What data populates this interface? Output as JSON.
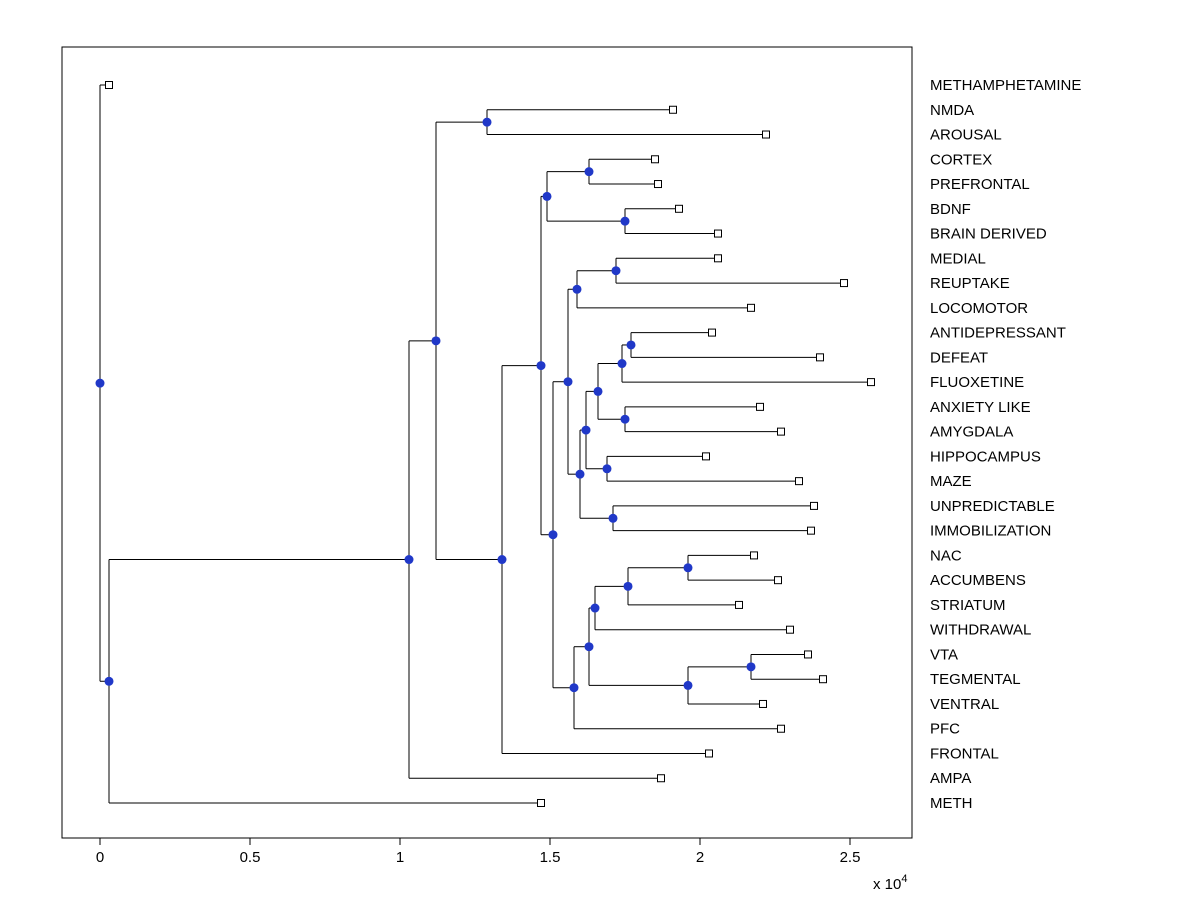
{
  "figure": {
    "background": "#ffffff"
  },
  "chart_data": {
    "type": "dendrogram",
    "orientation": "horizontal-root-left",
    "title": "",
    "xlabel": "",
    "ylabel": "",
    "grid": false,
    "legend": false,
    "xlim": [
      -0.127,
      2.707
    ],
    "x_ticks": [
      "0",
      "0.5",
      "1",
      "1.5",
      "2",
      "2.5"
    ],
    "x_tick_values": [
      0,
      0.5,
      1,
      1.5,
      2,
      2.5
    ],
    "x_axis_multiplier": {
      "base": "x 10",
      "exponent": "4"
    },
    "leaves": [
      {
        "label": "METHAMPHETAMINE",
        "x": 0.03
      },
      {
        "label": "NMDA",
        "x": 1.91
      },
      {
        "label": "AROUSAL",
        "x": 2.22
      },
      {
        "label": "CORTEX",
        "x": 1.85
      },
      {
        "label": "PREFRONTAL",
        "x": 1.86
      },
      {
        "label": "BDNF",
        "x": 1.93
      },
      {
        "label": "BRAIN DERIVED",
        "x": 2.06
      },
      {
        "label": "MEDIAL",
        "x": 2.06
      },
      {
        "label": "REUPTAKE",
        "x": 2.48
      },
      {
        "label": "LOCOMOTOR",
        "x": 2.17
      },
      {
        "label": "ANTIDEPRESSANT",
        "x": 2.04
      },
      {
        "label": "DEFEAT",
        "x": 2.4
      },
      {
        "label": "FLUOXETINE",
        "x": 2.57
      },
      {
        "label": "ANXIETY LIKE",
        "x": 2.2
      },
      {
        "label": "AMYGDALA",
        "x": 2.27
      },
      {
        "label": "HIPPOCAMPUS",
        "x": 2.02
      },
      {
        "label": "MAZE",
        "x": 2.33
      },
      {
        "label": "UNPREDICTABLE",
        "x": 2.38
      },
      {
        "label": "IMMOBILIZATION",
        "x": 2.37
      },
      {
        "label": "NAC",
        "x": 2.18
      },
      {
        "label": "ACCUMBENS",
        "x": 2.26
      },
      {
        "label": "STRIATUM",
        "x": 2.13
      },
      {
        "label": "WITHDRAWAL",
        "x": 2.3
      },
      {
        "label": "VTA",
        "x": 2.36
      },
      {
        "label": "TEGMENTAL",
        "x": 2.41
      },
      {
        "label": "VENTRAL",
        "x": 2.21
      },
      {
        "label": "PFC",
        "x": 2.27
      },
      {
        "label": "FRONTAL",
        "x": 2.03
      },
      {
        "label": "AMPA",
        "x": 1.87
      },
      {
        "label": "METH",
        "x": 1.47
      }
    ],
    "merges": [
      {
        "id": "n1",
        "children": [
          "NMDA",
          "AROUSAL"
        ],
        "x": 1.29
      },
      {
        "id": "n2",
        "children": [
          "CORTEX",
          "PREFRONTAL"
        ],
        "x": 1.63
      },
      {
        "id": "n3",
        "children": [
          "BDNF",
          "BRAIN DERIVED"
        ],
        "x": 1.75
      },
      {
        "id": "n4",
        "children": [
          "n2",
          "n3"
        ],
        "x": 1.49
      },
      {
        "id": "n5",
        "children": [
          "MEDIAL",
          "REUPTAKE"
        ],
        "x": 1.72
      },
      {
        "id": "n6",
        "children": [
          "n5",
          "LOCOMOTOR"
        ],
        "x": 1.59
      },
      {
        "id": "n7",
        "children": [
          "ANTIDEPRESSANT",
          "DEFEAT"
        ],
        "x": 1.77
      },
      {
        "id": "n8",
        "children": [
          "n7",
          "FLUOXETINE"
        ],
        "x": 1.74
      },
      {
        "id": "n9",
        "children": [
          "ANXIETY LIKE",
          "AMYGDALA"
        ],
        "x": 1.75
      },
      {
        "id": "n10",
        "children": [
          "n8",
          "n9"
        ],
        "x": 1.66
      },
      {
        "id": "n11",
        "children": [
          "HIPPOCAMPUS",
          "MAZE"
        ],
        "x": 1.69
      },
      {
        "id": "n12",
        "children": [
          "n10",
          "n11"
        ],
        "x": 1.62
      },
      {
        "id": "n13",
        "children": [
          "UNPREDICTABLE",
          "IMMOBILIZATION"
        ],
        "x": 1.71
      },
      {
        "id": "n14",
        "children": [
          "n12",
          "n13"
        ],
        "x": 1.6
      },
      {
        "id": "n15",
        "children": [
          "n6",
          "n14"
        ],
        "x": 1.56
      },
      {
        "id": "m1",
        "children": [
          "NAC",
          "ACCUMBENS"
        ],
        "x": 1.96
      },
      {
        "id": "m2",
        "children": [
          "m1",
          "STRIATUM"
        ],
        "x": 1.76
      },
      {
        "id": "m3",
        "children": [
          "m2",
          "WITHDRAWAL"
        ],
        "x": 1.65
      },
      {
        "id": "m4",
        "children": [
          "VTA",
          "TEGMENTAL"
        ],
        "x": 2.17
      },
      {
        "id": "m5",
        "children": [
          "m4",
          "VENTRAL"
        ],
        "x": 1.96
      },
      {
        "id": "m6",
        "children": [
          "m3",
          "m5"
        ],
        "x": 1.63
      },
      {
        "id": "m7",
        "children": [
          "m6",
          "PFC"
        ],
        "x": 1.58
      },
      {
        "id": "m8",
        "children": [
          "n15",
          "m7"
        ],
        "x": 1.51
      },
      {
        "id": "m9",
        "children": [
          "n4",
          "m8"
        ],
        "x": 1.47
      },
      {
        "id": "m10",
        "children": [
          "m9",
          "FRONTAL"
        ],
        "x": 1.34
      },
      {
        "id": "m11",
        "children": [
          "n1",
          "m10"
        ],
        "x": 1.12
      },
      {
        "id": "m12",
        "children": [
          "m11",
          "AMPA"
        ],
        "x": 1.03
      },
      {
        "id": "m13",
        "children": [
          "m12",
          "METH"
        ],
        "x": 0.03
      },
      {
        "id": "root",
        "children": [
          "METHAMPHETAMINE",
          "m13"
        ],
        "x": 0.0
      }
    ],
    "style": {
      "line_color": "#000000",
      "axis_color": "#000000",
      "leaf_marker": "open-square",
      "leaf_marker_fill": "#ffffff",
      "leaf_marker_stroke": "#000000",
      "node_marker": "filled-circle",
      "node_marker_color": "#2038c8",
      "label_font_size": 15,
      "tick_font_size": 15
    }
  }
}
